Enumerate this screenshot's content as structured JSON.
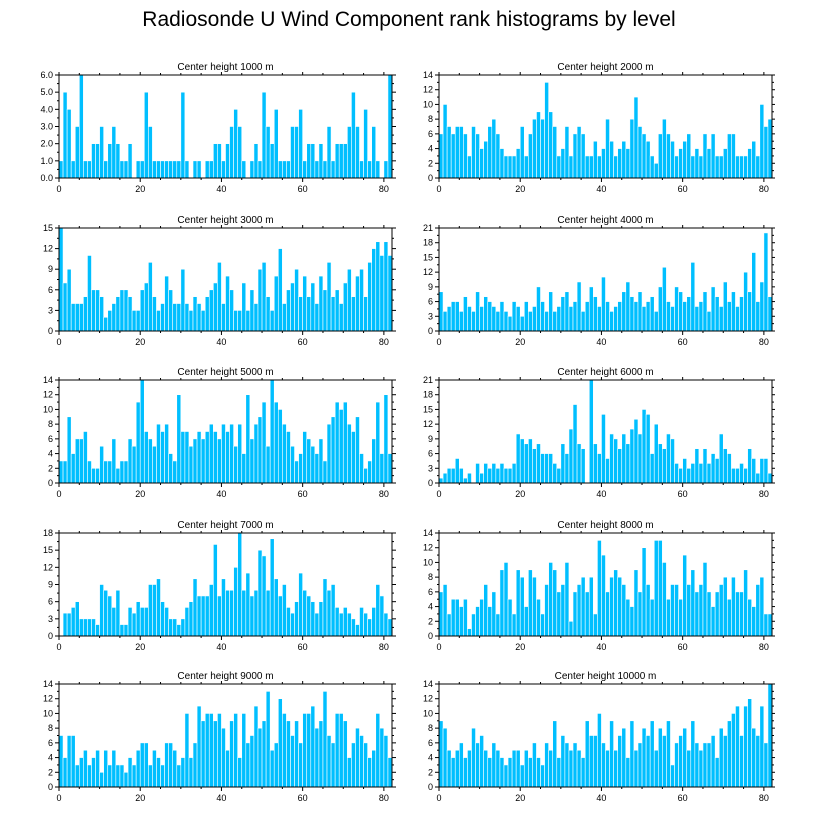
{
  "title": "Radiosonde U Wind Component rank histograms by level",
  "colors": {
    "bar": "#00bfff",
    "bar_edge": "#ffffff",
    "axis": "#000000"
  },
  "chart_data": [
    {
      "type": "bar",
      "title": "Center height 1000 m",
      "xlim": [
        0,
        82
      ],
      "ylim": [
        0,
        6
      ],
      "x_ticks": [
        0,
        20,
        40,
        60,
        80
      ],
      "y_ticks": [
        0,
        1,
        2,
        3,
        4,
        5,
        6
      ],
      "y_tick_labels": [
        "0.0",
        "1.0",
        "2.0",
        "3.0",
        "4.0",
        "5.0",
        "6.0"
      ],
      "values": [
        1,
        5,
        4,
        1,
        3,
        6,
        1,
        1,
        2,
        2,
        3,
        1,
        2,
        3,
        2,
        1,
        1,
        2,
        0,
        1,
        1,
        5,
        3,
        1,
        1,
        1,
        1,
        1,
        1,
        1,
        5,
        1,
        0,
        1,
        1,
        0,
        1,
        1,
        2,
        2,
        1,
        2,
        3,
        4,
        3,
        1,
        0,
        1,
        2,
        1,
        5,
        3,
        2,
        4,
        1,
        1,
        1,
        3,
        3,
        4,
        1,
        2,
        2,
        1,
        2,
        1,
        3,
        1,
        2,
        2,
        2,
        3,
        5,
        3,
        1,
        4,
        1,
        3,
        1,
        0,
        1,
        6
      ],
      "axis_right": true
    },
    {
      "type": "bar",
      "title": "Center height 2000 m",
      "xlim": [
        0,
        82
      ],
      "ylim": [
        0,
        14
      ],
      "x_ticks": [
        0,
        20,
        40,
        60,
        80
      ],
      "y_ticks": [
        0,
        2,
        4,
        6,
        8,
        10,
        12,
        14
      ],
      "y_tick_labels": [
        "0",
        "2",
        "4",
        "6",
        "8",
        "10",
        "12",
        "14"
      ],
      "values": [
        6,
        10,
        7,
        6,
        7,
        7,
        6,
        3,
        7,
        6,
        4,
        5,
        7,
        8,
        6,
        4,
        3,
        3,
        3,
        4,
        7,
        3,
        6,
        8,
        9,
        8,
        13,
        9,
        7,
        3,
        4,
        7,
        3,
        6,
        7,
        6,
        3,
        3,
        5,
        3,
        4,
        8,
        5,
        3,
        4,
        5,
        4,
        8,
        11,
        7,
        6,
        5,
        3,
        2,
        6,
        8,
        6,
        5,
        3,
        4,
        5,
        6,
        3,
        4,
        3,
        6,
        4,
        6,
        3,
        3,
        4,
        6,
        6,
        3,
        3,
        3,
        4,
        5,
        3,
        10,
        7,
        8
      ],
      "axis_right": false
    },
    {
      "type": "bar",
      "title": "Center height 3000 m",
      "xlim": [
        0,
        82
      ],
      "ylim": [
        0,
        15
      ],
      "x_ticks": [
        0,
        20,
        40,
        60,
        80
      ],
      "y_ticks": [
        0,
        3,
        6,
        9,
        12,
        15
      ],
      "y_tick_labels": [
        "0",
        "3",
        "6",
        "9",
        "12",
        "15"
      ],
      "values": [
        15,
        7,
        9,
        4,
        4,
        4,
        5,
        11,
        6,
        6,
        5,
        2,
        3,
        4,
        5,
        6,
        6,
        5,
        3,
        3,
        6,
        7,
        10,
        5,
        3,
        4,
        8,
        6,
        4,
        4,
        9,
        4,
        3,
        5,
        4,
        3,
        5,
        6,
        7,
        10,
        4,
        8,
        6,
        3,
        3,
        7,
        3,
        6,
        4,
        9,
        10,
        5,
        3,
        8,
        12,
        4,
        6,
        7,
        9,
        5,
        8,
        5,
        7,
        4,
        8,
        6,
        10,
        5,
        6,
        4,
        7,
        9,
        5,
        8,
        9,
        5,
        10,
        12,
        13,
        11,
        13,
        11
      ],
      "axis_right": true
    },
    {
      "type": "bar",
      "title": "Center height 4000 m",
      "xlim": [
        0,
        82
      ],
      "ylim": [
        0,
        21
      ],
      "x_ticks": [
        0,
        20,
        40,
        60,
        80
      ],
      "y_ticks": [
        0,
        3,
        6,
        9,
        12,
        15,
        18,
        21
      ],
      "y_tick_labels": [
        "0",
        "3",
        "6",
        "9",
        "12",
        "15",
        "18",
        "21"
      ],
      "values": [
        8,
        4,
        5,
        6,
        6,
        4,
        7,
        5,
        4,
        8,
        5,
        7,
        6,
        5,
        4,
        6,
        4,
        3,
        6,
        5,
        3,
        6,
        4,
        5,
        9,
        6,
        4,
        8,
        4,
        5,
        7,
        8,
        5,
        6,
        10,
        4,
        6,
        9,
        7,
        5,
        11,
        6,
        4,
        5,
        6,
        8,
        10,
        7,
        6,
        8,
        5,
        6,
        7,
        4,
        9,
        13,
        6,
        5,
        9,
        8,
        6,
        7,
        14,
        5,
        6,
        8,
        4,
        9,
        7,
        5,
        10,
        6,
        8,
        5,
        7,
        12,
        8,
        16,
        6,
        10,
        20,
        7
      ],
      "axis_right": false
    },
    {
      "type": "bar",
      "title": "Center height 5000 m",
      "xlim": [
        0,
        82
      ],
      "ylim": [
        0,
        14
      ],
      "x_ticks": [
        0,
        20,
        40,
        60,
        80
      ],
      "y_ticks": [
        0,
        2,
        4,
        6,
        8,
        10,
        12,
        14
      ],
      "y_tick_labels": [
        "0",
        "2",
        "4",
        "6",
        "8",
        "10",
        "12",
        "14"
      ],
      "values": [
        3,
        3,
        9,
        4,
        6,
        6,
        7,
        3,
        2,
        2,
        5,
        3,
        3,
        6,
        2,
        3,
        3,
        6,
        5,
        11,
        14,
        7,
        6,
        5,
        8,
        7,
        8,
        4,
        3,
        12,
        7,
        7,
        5,
        6,
        7,
        6,
        7,
        8,
        7,
        6,
        8,
        7,
        8,
        5,
        8,
        4,
        12,
        6,
        8,
        9,
        11,
        5,
        14,
        11,
        10,
        8,
        7,
        5,
        3,
        4,
        7,
        6,
        5,
        4,
        6,
        3,
        8,
        9,
        11,
        10,
        11,
        8,
        7,
        9,
        4,
        2,
        3,
        6,
        11,
        4,
        12,
        4
      ],
      "axis_right": true
    },
    {
      "type": "bar",
      "title": "Center height 6000 m",
      "xlim": [
        0,
        82
      ],
      "ylim": [
        0,
        21
      ],
      "x_ticks": [
        0,
        20,
        40,
        60,
        80
      ],
      "y_ticks": [
        0,
        3,
        6,
        9,
        12,
        15,
        18,
        21
      ],
      "y_tick_labels": [
        "0",
        "3",
        "6",
        "9",
        "12",
        "15",
        "18",
        "21"
      ],
      "values": [
        1,
        2,
        3,
        3,
        5,
        3,
        1,
        2,
        0,
        4,
        2,
        4,
        3,
        4,
        3,
        4,
        3,
        3,
        4,
        10,
        9,
        8,
        9,
        7,
        8,
        6,
        6,
        6,
        4,
        3,
        8,
        6,
        11,
        16,
        8,
        7,
        0,
        21,
        8,
        6,
        14,
        5,
        10,
        9,
        7,
        10,
        8,
        11,
        13,
        10,
        15,
        14,
        6,
        12,
        8,
        7,
        10,
        9,
        4,
        3,
        5,
        3,
        4,
        7,
        4,
        7,
        4,
        6,
        5,
        10,
        7,
        6,
        3,
        3,
        4,
        3,
        7,
        5,
        2,
        5,
        5,
        2
      ],
      "axis_right": false
    },
    {
      "type": "bar",
      "title": "Center height 7000 m",
      "xlim": [
        0,
        82
      ],
      "ylim": [
        0,
        18
      ],
      "x_ticks": [
        0,
        20,
        40,
        60,
        80
      ],
      "y_ticks": [
        0,
        3,
        6,
        9,
        12,
        15,
        18
      ],
      "y_tick_labels": [
        "0",
        "3",
        "6",
        "9",
        "12",
        "15",
        "18"
      ],
      "values": [
        0,
        4,
        4,
        5,
        6,
        3,
        3,
        3,
        3,
        2,
        9,
        8,
        7,
        5,
        8,
        2,
        2,
        5,
        4,
        6,
        5,
        5,
        9,
        9,
        10,
        6,
        5,
        3,
        3,
        2,
        3,
        5,
        6,
        10,
        7,
        7,
        7,
        9,
        16,
        7,
        10,
        8,
        8,
        12,
        18,
        8,
        11,
        7,
        8,
        15,
        14,
        8,
        17,
        10,
        7,
        9,
        5,
        4,
        6,
        11,
        8,
        7,
        6,
        4,
        6,
        10,
        8,
        9,
        5,
        4,
        5,
        4,
        3,
        2,
        5,
        4,
        3,
        5,
        9,
        7,
        4,
        3
      ],
      "axis_right": true
    },
    {
      "type": "bar",
      "title": "Center height 8000 m",
      "xlim": [
        0,
        82
      ],
      "ylim": [
        0,
        14
      ],
      "x_ticks": [
        0,
        20,
        40,
        60,
        80
      ],
      "y_ticks": [
        0,
        2,
        4,
        6,
        8,
        10,
        12,
        14
      ],
      "y_tick_labels": [
        "0",
        "2",
        "4",
        "6",
        "8",
        "10",
        "12",
        "14"
      ],
      "values": [
        6,
        7,
        3,
        5,
        5,
        4,
        5,
        1,
        3,
        4,
        5,
        7,
        4,
        6,
        3,
        9,
        10,
        5,
        3,
        9,
        8,
        4,
        9,
        8,
        5,
        3,
        7,
        10,
        9,
        6,
        7,
        10,
        2,
        6,
        7,
        8,
        6,
        8,
        3,
        13,
        11,
        6,
        8,
        9,
        8,
        7,
        5,
        4,
        9,
        6,
        12,
        7,
        5,
        13,
        13,
        10,
        5,
        7,
        7,
        5,
        11,
        7,
        9,
        6,
        7,
        10,
        6,
        4,
        6,
        7,
        8,
        5,
        8,
        6,
        6,
        9,
        5,
        4,
        7,
        8,
        3,
        3
      ],
      "axis_right": false
    },
    {
      "type": "bar",
      "title": "Center height 9000 m",
      "xlim": [
        0,
        82
      ],
      "ylim": [
        0,
        14
      ],
      "x_ticks": [
        0,
        20,
        40,
        60,
        80
      ],
      "y_ticks": [
        0,
        2,
        4,
        6,
        8,
        10,
        12,
        14
      ],
      "y_tick_labels": [
        "0",
        "2",
        "4",
        "6",
        "8",
        "10",
        "12",
        "14"
      ],
      "values": [
        7,
        4,
        7,
        7,
        3,
        4,
        5,
        3,
        4,
        5,
        2,
        5,
        3,
        5,
        3,
        3,
        2,
        4,
        3,
        5,
        6,
        6,
        3,
        5,
        4,
        3,
        6,
        6,
        5,
        3,
        4,
        10,
        4,
        6,
        11,
        9,
        10,
        10,
        9,
        10,
        8,
        5,
        9,
        10,
        4,
        10,
        6,
        7,
        11,
        8,
        9,
        13,
        5,
        6,
        12,
        10,
        9,
        7,
        9,
        6,
        10,
        10,
        11,
        8,
        9,
        13,
        7,
        6,
        10,
        10,
        9,
        4,
        6,
        8,
        7,
        6,
        4,
        5,
        10,
        8,
        7,
        4
      ],
      "axis_right": true
    },
    {
      "type": "bar",
      "title": "Center height 10000 m",
      "xlim": [
        0,
        82
      ],
      "ylim": [
        0,
        14
      ],
      "x_ticks": [
        0,
        20,
        40,
        60,
        80
      ],
      "y_ticks": [
        0,
        2,
        4,
        6,
        8,
        10,
        12,
        14
      ],
      "y_tick_labels": [
        "0",
        "2",
        "4",
        "6",
        "8",
        "10",
        "12",
        "14"
      ],
      "values": [
        9,
        8,
        5,
        4,
        5,
        6,
        4,
        5,
        8,
        6,
        7,
        5,
        4,
        6,
        5,
        4,
        3,
        4,
        5,
        5,
        3,
        5,
        4,
        6,
        4,
        3,
        6,
        5,
        9,
        4,
        7,
        6,
        5,
        6,
        5,
        4,
        9,
        7,
        7,
        10,
        6,
        5,
        9,
        5,
        7,
        8,
        4,
        9,
        5,
        6,
        8,
        7,
        9,
        5,
        8,
        7,
        9,
        3,
        6,
        7,
        8,
        5,
        9,
        6,
        5,
        6,
        6,
        7,
        4,
        8,
        7,
        9,
        10,
        11,
        7,
        11,
        12,
        8,
        7,
        11,
        6,
        14
      ],
      "axis_right": false
    }
  ]
}
